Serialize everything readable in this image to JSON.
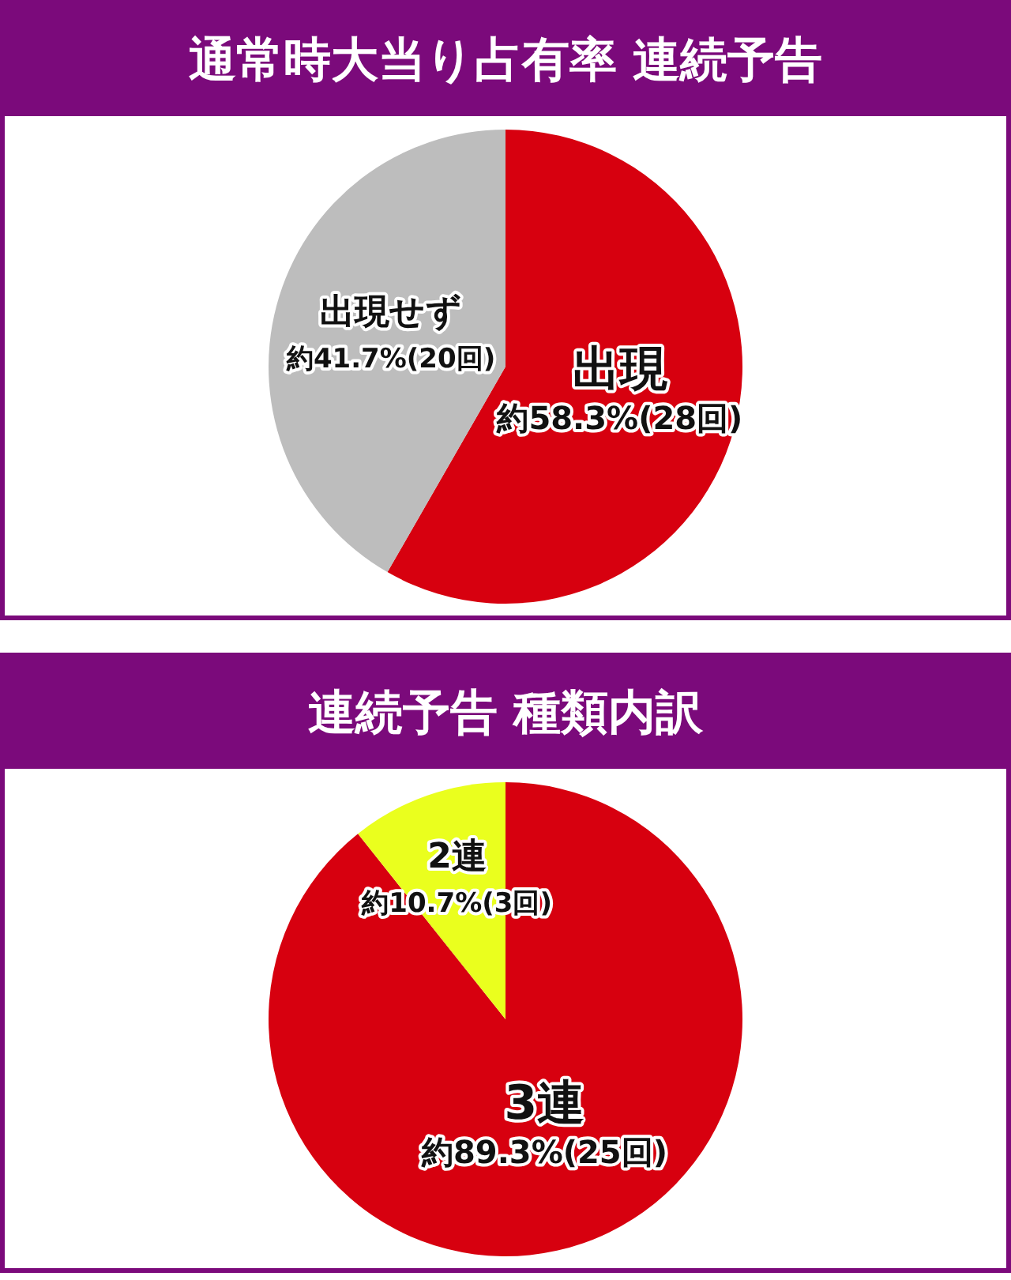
{
  "chart_data": [
    {
      "type": "pie",
      "title": "通常時大当り占有率 連続予告",
      "categories": [
        "出現",
        "出現せず"
      ],
      "values": [
        58.3,
        41.7
      ],
      "colors": [
        "#d7000f",
        "#bdbdbd"
      ],
      "value_labels": [
        "約58.3%(28回)",
        "約41.7%(20回)"
      ]
    },
    {
      "type": "pie",
      "title": "連続予告 種類内訳",
      "categories": [
        "3連",
        "2連"
      ],
      "values": [
        89.3,
        10.7
      ],
      "colors": [
        "#d7000f",
        "#eaff1e"
      ],
      "value_labels": [
        "約89.3%(25回)",
        "約10.7%(3回)"
      ]
    }
  ]
}
